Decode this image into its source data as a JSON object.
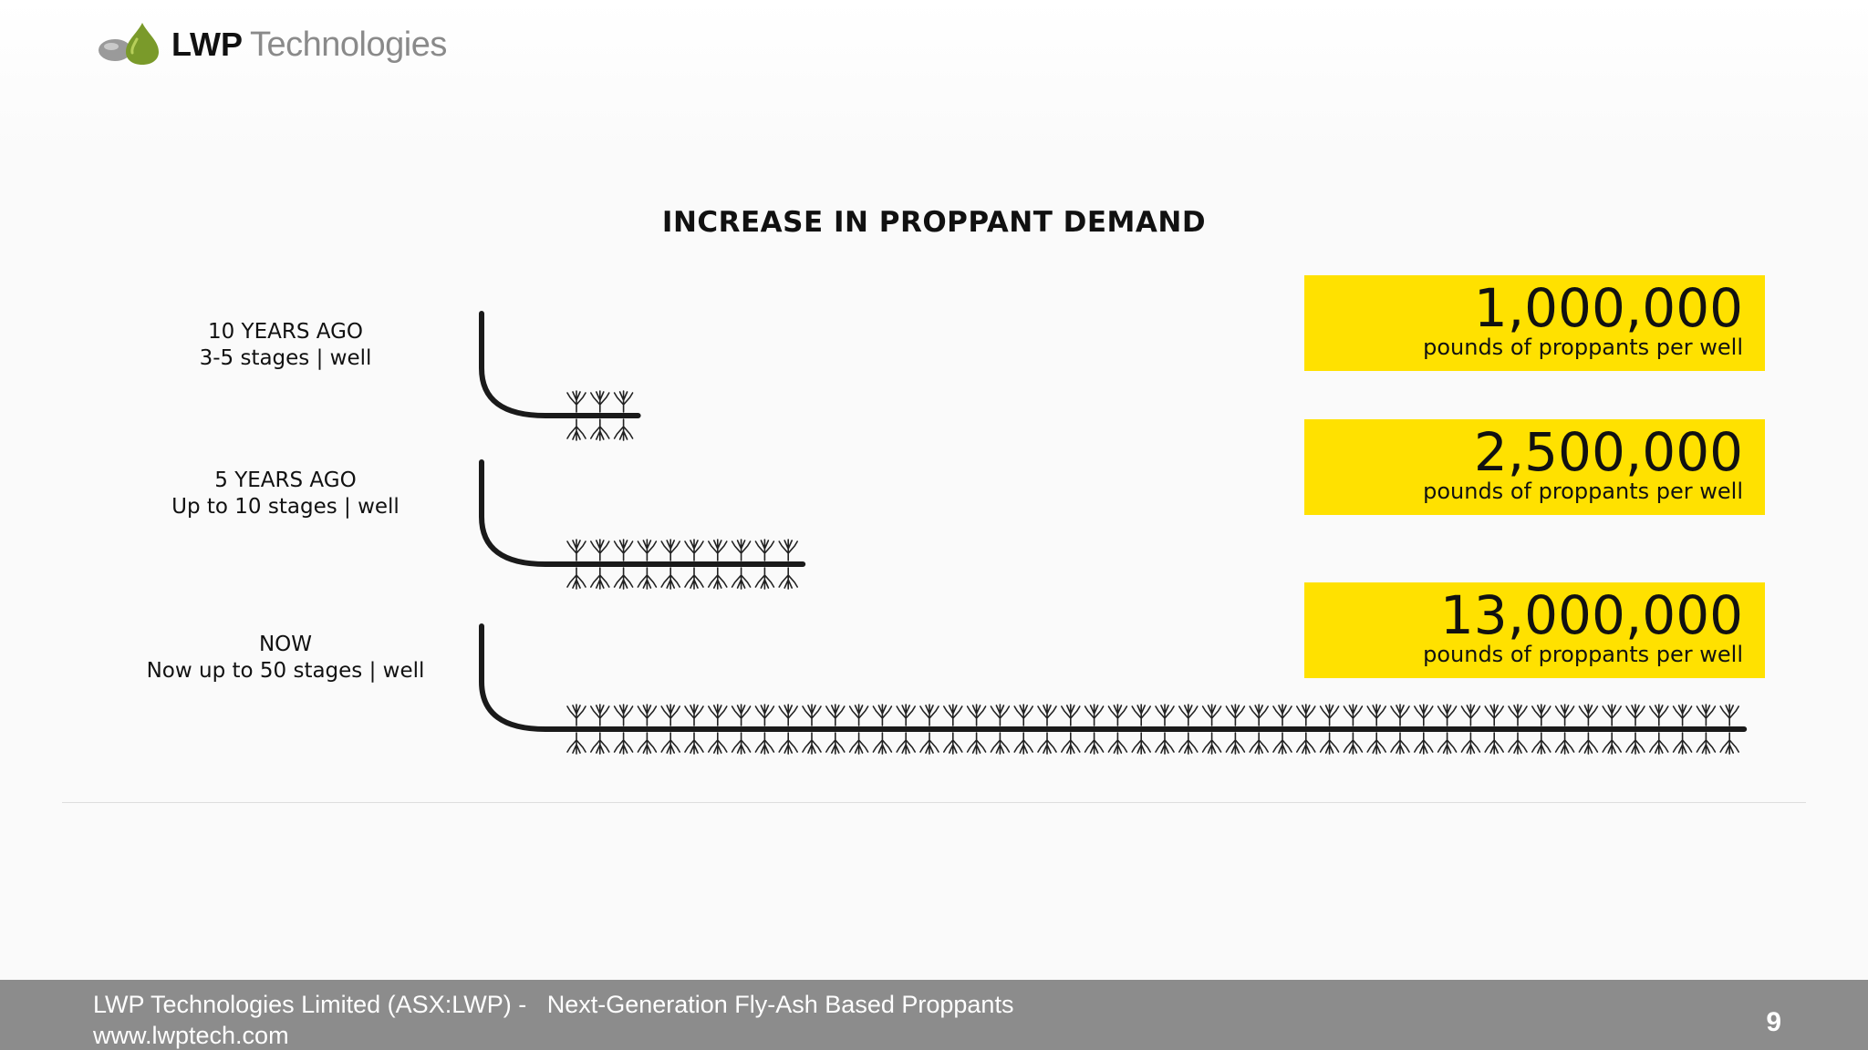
{
  "header": {
    "logo_bold": "LWP",
    "logo_light": "Technologies",
    "logo_colors": {
      "grey_drop": "#8f8f8f",
      "green_drop": "#7a9a2a"
    }
  },
  "main": {
    "title": "INCREASE IN PROPPANT DEMAND",
    "rows": [
      {
        "period": "10 YEARS AGO",
        "stages_text": "3-5 stages | well",
        "amount": "1,000,000",
        "amount_caption": "pounds of proppants per well",
        "stage_icons": 3
      },
      {
        "period": "5 YEARS AGO",
        "stages_text": "Up to 10 stages | well",
        "amount": "2,500,000",
        "amount_caption": "pounds of proppants per well",
        "stage_icons": 10
      },
      {
        "period": "NOW",
        "stages_text": "Now up to 50 stages | well",
        "amount": "13,000,000",
        "amount_caption": "pounds of proppants per well",
        "stage_icons": 50
      }
    ],
    "highlight_color": "#ffe100"
  },
  "footer": {
    "company": "LWP Technologies Limited (ASX:LWP) -   Next-Generation Fly-Ash Based Proppants",
    "website": "www.lwptech.com",
    "page_number": "9",
    "background_color": "#8c8c8c"
  }
}
